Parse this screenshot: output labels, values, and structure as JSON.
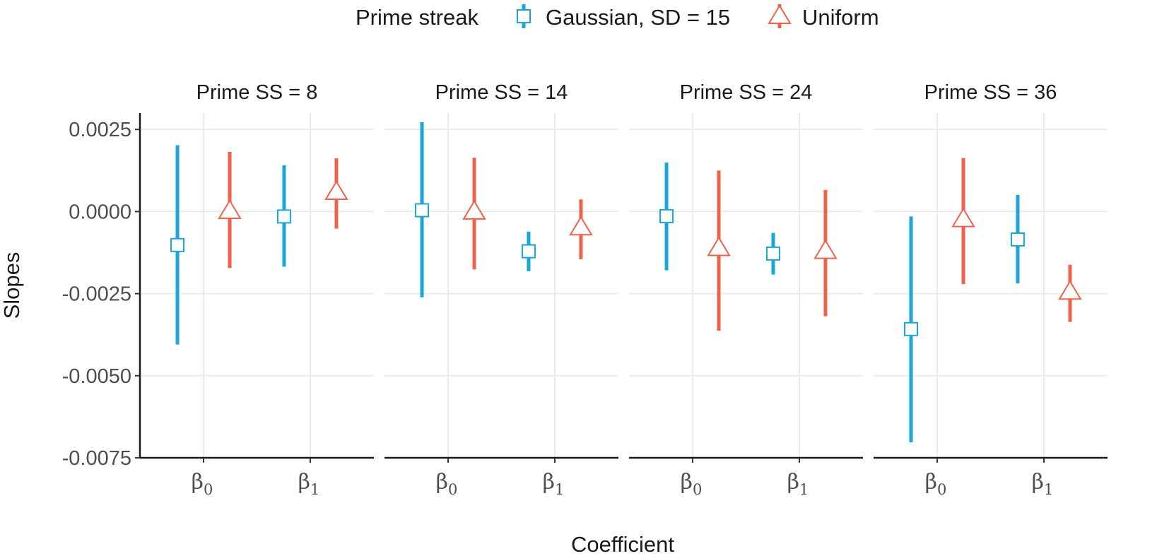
{
  "chart_data": {
    "type": "errorbar",
    "legend": {
      "title": "Prime streak",
      "placement": "top"
    },
    "xlabel": "Coefficient",
    "ylabel": "Slopes",
    "categories": [
      "β0",
      "β1"
    ],
    "category_labels": [
      {
        "base": "β",
        "sub": "0"
      },
      {
        "base": "β",
        "sub": "1"
      }
    ],
    "ylim": [
      -0.0075,
      0.003
    ],
    "yticks": [
      {
        "value": 0.0025,
        "label": "0.0025"
      },
      {
        "value": 0.0,
        "label": "0.0000"
      },
      {
        "value": -0.0025,
        "label": "-0.0025"
      },
      {
        "value": -0.005,
        "label": "-0.0050"
      },
      {
        "value": -0.0075,
        "label": "-0.0075"
      }
    ],
    "grid": true,
    "series": [
      {
        "name": "Gaussian, SD = 15",
        "color": "#1aa7d8",
        "marker": "square"
      },
      {
        "name": "Uniform",
        "color": "#f0614a",
        "marker": "triangle"
      }
    ],
    "panels": [
      {
        "title": "Prime SS = 8",
        "points": [
          {
            "category": "β0",
            "series": 0,
            "estimate": -0.00102,
            "lower": -0.00405,
            "upper": 0.00202
          },
          {
            "category": "β0",
            "series": 1,
            "estimate": 1e-05,
            "lower": -0.00172,
            "upper": 0.00182
          },
          {
            "category": "β1",
            "series": 0,
            "estimate": -0.00015,
            "lower": -0.00168,
            "upper": 0.00141
          },
          {
            "category": "β1",
            "series": 1,
            "estimate": 0.00059,
            "lower": -0.00052,
            "upper": 0.00162
          }
        ]
      },
      {
        "title": "Prime SS = 14",
        "points": [
          {
            "category": "β0",
            "series": 0,
            "estimate": 4e-05,
            "lower": -0.00261,
            "upper": 0.00272
          },
          {
            "category": "β0",
            "series": 1,
            "estimate": -1e-05,
            "lower": -0.00176,
            "upper": 0.00164
          },
          {
            "category": "β1",
            "series": 0,
            "estimate": -0.00121,
            "lower": -0.00182,
            "upper": -0.00061
          },
          {
            "category": "β1",
            "series": 1,
            "estimate": -0.00049,
            "lower": -0.00145,
            "upper": 0.00037
          }
        ]
      },
      {
        "title": "Prime SS = 24",
        "points": [
          {
            "category": "β0",
            "series": 0,
            "estimate": -0.00014,
            "lower": -0.00179,
            "upper": 0.00149
          },
          {
            "category": "β0",
            "series": 1,
            "estimate": -0.00112,
            "lower": -0.00363,
            "upper": 0.00125
          },
          {
            "category": "β1",
            "series": 0,
            "estimate": -0.00128,
            "lower": -0.00192,
            "upper": -0.00065
          },
          {
            "category": "β1",
            "series": 1,
            "estimate": -0.00121,
            "lower": -0.00319,
            "upper": 0.00066
          }
        ]
      },
      {
        "title": "Prime SS = 36",
        "points": [
          {
            "category": "β0",
            "series": 0,
            "estimate": -0.00358,
            "lower": -0.00703,
            "upper": -0.00015
          },
          {
            "category": "β0",
            "series": 1,
            "estimate": -0.00024,
            "lower": -0.00221,
            "upper": 0.00163
          },
          {
            "category": "β1",
            "series": 0,
            "estimate": -0.00085,
            "lower": -0.00219,
            "upper": 0.00051
          },
          {
            "category": "β1",
            "series": 1,
            "estimate": -0.00245,
            "lower": -0.00336,
            "upper": -0.00162
          }
        ]
      }
    ]
  }
}
